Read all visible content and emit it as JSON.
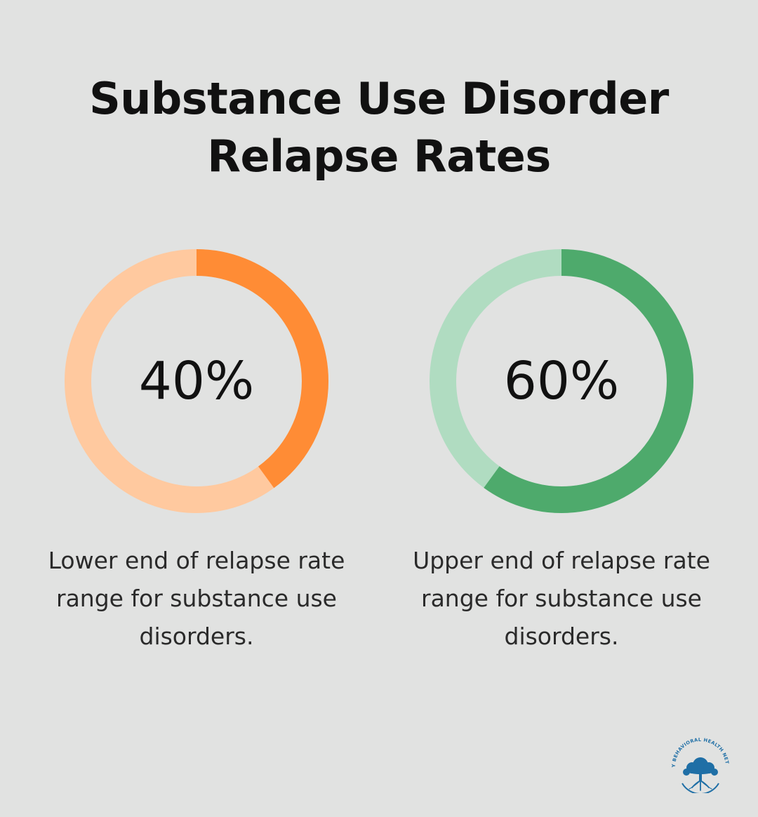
{
  "title_line1": "Substance Use Disorder",
  "title_line2": "Relapse Rates",
  "chart_data": [
    {
      "type": "pie",
      "value": 40,
      "unit": "%",
      "label": "40%",
      "description": "Lower end of relapse rate range for substance use disorders.",
      "color_filled": "#ff8c35",
      "color_remaining": "#ffc99f"
    },
    {
      "type": "pie",
      "value": 60,
      "unit": "%",
      "label": "60%",
      "description": "Upper end of relapse rate range for substance use disorders.",
      "color_filled": "#4eaa6c",
      "color_remaining": "#b0dcc1"
    }
  ],
  "logo": {
    "icon": "tree-icon",
    "text": "AMITY BEHAVIORAL HEALTH NETWORK",
    "color": "#1f6fa6"
  }
}
